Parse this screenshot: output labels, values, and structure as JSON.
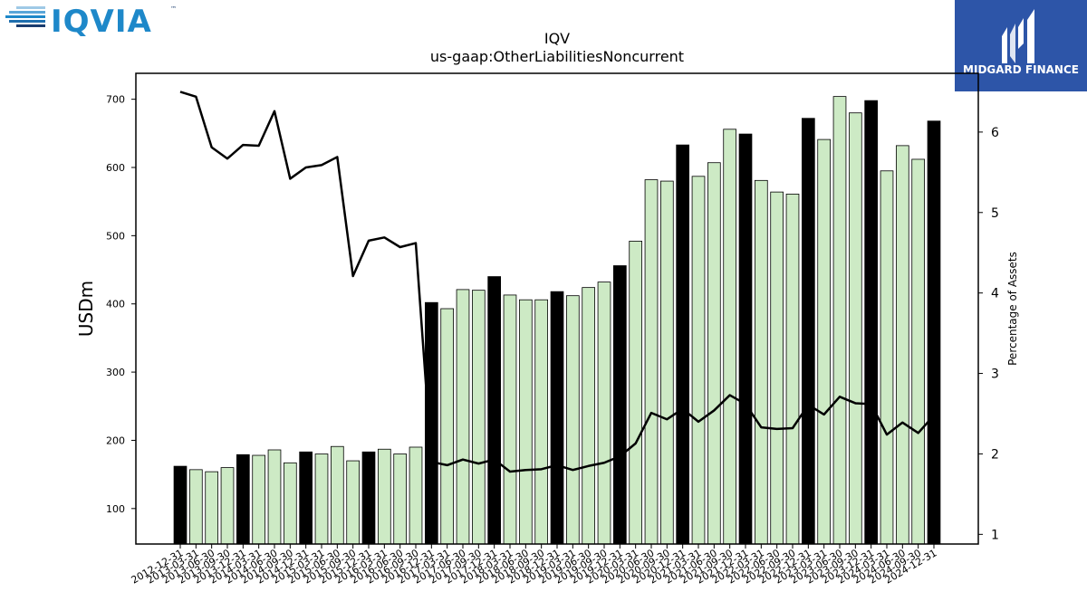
{
  "header": {
    "logo_text": "IQVIA",
    "logo_tm": "™",
    "badge_text": "MIDGARD FINANCE"
  },
  "colors": {
    "annual_bar": "#000000",
    "quarter_bar": "#cdeac5",
    "bar_edge": "#000000",
    "line": "#000000",
    "iqvia_blue": "#1e88c9",
    "iqvia_dark": "#1a3c6e",
    "badge_bg": "#2d55a8"
  },
  "chart_data": {
    "type": "bar",
    "title": "IQV",
    "subtitle": "us-gaap:OtherLiabilitiesNoncurrent",
    "ylabel": "USDm",
    "y2label": "Percentage of Assets",
    "ylim": [
      48,
      738
    ],
    "y2lim": [
      0.88,
      6.73
    ],
    "yticks": [
      100,
      200,
      300,
      400,
      500,
      600,
      700
    ],
    "y2ticks": [
      1,
      2,
      3,
      4,
      5,
      6
    ],
    "categories": [
      "2012-12-31",
      "2013-03-31",
      "2013-06-30",
      "2013-09-30",
      "2013-12-31",
      "2014-03-31",
      "2014-06-30",
      "2014-09-30",
      "2014-12-31",
      "2015-03-31",
      "2015-06-30",
      "2015-09-30",
      "2015-12-31",
      "2016-03-31",
      "2016-06-30",
      "2016-09-30",
      "2016-12-31",
      "2017-03-31",
      "2017-06-30",
      "2017-09-30",
      "2017-12-31",
      "2018-03-31",
      "2018-06-30",
      "2018-09-30",
      "2018-12-31",
      "2019-03-31",
      "2019-06-30",
      "2019-09-30",
      "2019-12-31",
      "2020-03-31",
      "2020-06-30",
      "2020-09-30",
      "2020-12-31",
      "2021-03-31",
      "2021-06-30",
      "2021-09-30",
      "2021-12-31",
      "2022-03-31",
      "2022-06-30",
      "2022-09-30",
      "2022-12-31",
      "2023-03-31",
      "2023-06-30",
      "2023-09-30",
      "2023-12-31",
      "2024-03-31",
      "2024-06-30",
      "2024-09-30",
      "2024-12-31"
    ],
    "annual": [
      true,
      false,
      false,
      false,
      true,
      false,
      false,
      false,
      true,
      false,
      false,
      false,
      true,
      false,
      false,
      false,
      true,
      false,
      false,
      false,
      true,
      false,
      false,
      false,
      true,
      false,
      false,
      false,
      true,
      false,
      false,
      false,
      true,
      false,
      false,
      false,
      true,
      false,
      false,
      false,
      true,
      false,
      false,
      false,
      true,
      false,
      false,
      false,
      true
    ],
    "series": [
      {
        "name": "USDm",
        "axis": "left",
        "values": [
          162,
          157,
          154,
          160,
          179,
          178,
          186,
          167,
          183,
          180,
          191,
          170,
          183,
          187,
          180,
          190,
          402,
          393,
          421,
          420,
          440,
          413,
          406,
          406,
          418,
          412,
          424,
          432,
          456,
          492,
          582,
          580,
          633,
          587,
          607,
          656,
          649,
          581,
          564,
          561,
          672,
          641,
          704,
          680,
          698,
          595,
          632,
          612,
          668
        ]
      },
      {
        "name": "Percentage of Assets",
        "axis": "right",
        "values": [
          6.5,
          6.44,
          5.81,
          5.67,
          5.84,
          5.83,
          6.26,
          5.42,
          5.56,
          5.59,
          5.69,
          4.21,
          4.65,
          4.69,
          4.57,
          4.62,
          1.9,
          1.86,
          1.93,
          1.88,
          1.93,
          1.78,
          1.8,
          1.81,
          1.86,
          1.8,
          1.85,
          1.89,
          1.97,
          2.13,
          2.51,
          2.43,
          2.56,
          2.4,
          2.54,
          2.73,
          2.62,
          2.33,
          2.31,
          2.32,
          2.61,
          2.49,
          2.71,
          2.63,
          2.62,
          2.24,
          2.39,
          2.26,
          2.48
        ]
      }
    ]
  }
}
